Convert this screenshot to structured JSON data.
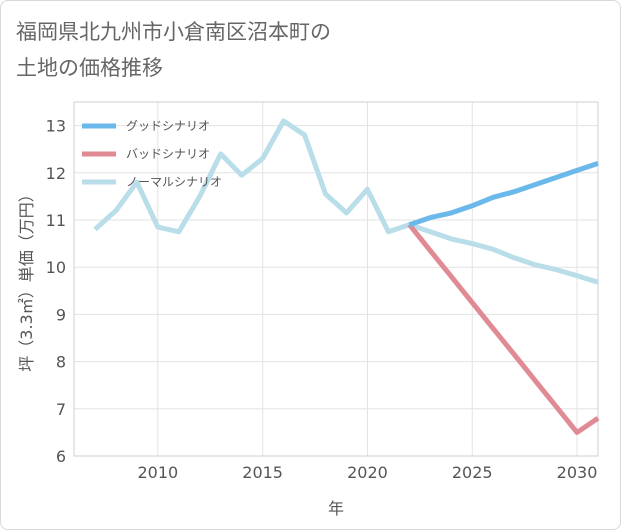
{
  "title_line1": "福岡県北九州市小倉南区沼本町の",
  "title_line2": "土地の価格推移",
  "chart_data": {
    "type": "line",
    "xlabel": "年",
    "ylabel": "坪（3.3㎡）単価（万円）",
    "xlim": [
      2006,
      2031
    ],
    "ylim": [
      6,
      13.5
    ],
    "xticks": [
      2010,
      2015,
      2020,
      2025,
      2030
    ],
    "yticks": [
      6,
      7,
      8,
      9,
      10,
      11,
      12,
      13
    ],
    "grid": true,
    "legend_position": "top-left",
    "series": [
      {
        "name": "グッドシナリオ",
        "color": "#6bb8ea",
        "x": [
          2022,
          2023,
          2024,
          2025,
          2026,
          2027,
          2028,
          2029,
          2030,
          2031
        ],
        "y": [
          10.9,
          11.05,
          11.15,
          11.3,
          11.48,
          11.6,
          11.75,
          11.9,
          12.05,
          12.2
        ]
      },
      {
        "name": "バッドシナリオ",
        "color": "#e08a93",
        "x": [
          2022,
          2023,
          2024,
          2025,
          2026,
          2027,
          2028,
          2029,
          2030,
          2031
        ],
        "y": [
          10.9,
          10.35,
          9.8,
          9.25,
          8.7,
          8.15,
          7.6,
          7.05,
          6.5,
          6.8
        ]
      },
      {
        "name": "ノーマルシナリオ",
        "color": "#b9dde9",
        "x": [
          2007,
          2008,
          2009,
          2010,
          2011,
          2012,
          2013,
          2014,
          2015,
          2016,
          2017,
          2018,
          2019,
          2020,
          2021,
          2022,
          2023,
          2024,
          2025,
          2026,
          2027,
          2028,
          2029,
          2030,
          2031
        ],
        "y": [
          10.8,
          11.2,
          11.8,
          10.85,
          10.75,
          11.5,
          12.4,
          11.95,
          12.3,
          13.1,
          12.8,
          11.55,
          11.15,
          11.65,
          10.75,
          10.9,
          10.75,
          10.6,
          10.5,
          10.38,
          10.2,
          10.05,
          9.95,
          9.82,
          9.68
        ]
      }
    ]
  }
}
